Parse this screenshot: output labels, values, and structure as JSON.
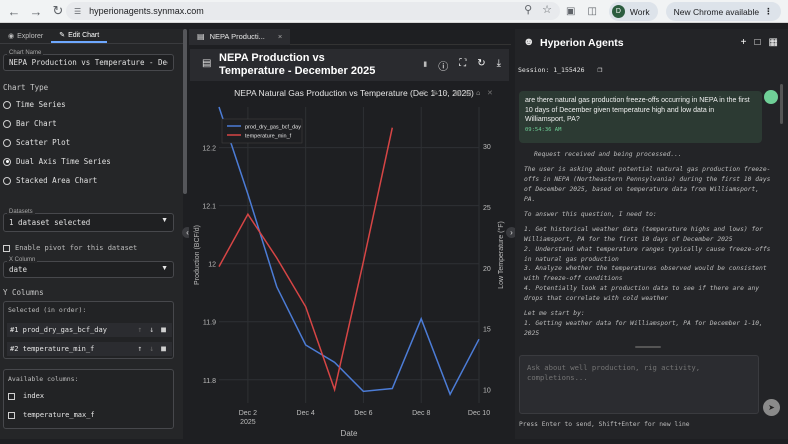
{
  "browser": {
    "url": "hyperionagents.synmax.com",
    "profile_initial": "D",
    "profile_label": "Work",
    "update_label": "New Chrome available"
  },
  "left_panel": {
    "tabs": [
      {
        "label": "Explorer",
        "icon": "compass-icon"
      },
      {
        "label": "Edit Chart",
        "icon": "pencil-icon"
      }
    ],
    "chart_name_label": "Chart Name",
    "chart_name_value": "NEPA Production vs Temperature - Decem",
    "chart_type_label": "Chart Type",
    "chart_types": [
      "Time Series",
      "Bar Chart",
      "Scatter Plot",
      "Dual Axis Time Series",
      "Stacked Area Chart"
    ],
    "selected_chart_type_index": 3,
    "datasets_label": "Datasets",
    "datasets_value": "1 dataset selected",
    "pivot_label": "Enable pivot for this dataset",
    "x_column_label": "X Column",
    "x_column_value": "date",
    "y_columns_label": "Y Columns",
    "selected_in_order_label": "Selected (in order):",
    "selected_columns": [
      {
        "index": "#1",
        "name": "prod_dry_gas_bcf_day"
      },
      {
        "index": "#2",
        "name": "temperature_min_f"
      }
    ],
    "available_columns_label": "Available columns:",
    "available_columns": [
      "index",
      "temperature_max_f"
    ]
  },
  "center": {
    "tab_label": "NEPA Producti...",
    "header_title": "NEPA Production vs Temperature - December 2025"
  },
  "chart_data": {
    "type": "line",
    "title": "NEPA Natural Gas Production vs Temperature (Dec 1-10, 2025)",
    "xlabel": "Date",
    "x": [
      "2025-12-01",
      "2025-12-02",
      "2025-12-03",
      "2025-12-04",
      "2025-12-05",
      "2025-12-06",
      "2025-12-07",
      "2025-12-08",
      "2025-12-09",
      "2025-12-10"
    ],
    "x_tick_labels": [
      "Dec 2",
      "2025",
      "Dec 4",
      "Dec 6",
      "Dec 8",
      "Dec 10"
    ],
    "y_left": {
      "label": "Production (BCF/d)",
      "ticks": [
        "11.8",
        "11.9",
        "12",
        "12.1",
        "12.2"
      ],
      "range": [
        11.76,
        12.27
      ]
    },
    "y_right": {
      "label": "Low Temperature (°F)",
      "ticks": [
        "10",
        "15",
        "20",
        "25",
        "30"
      ],
      "range": [
        8.9,
        33.2
      ]
    },
    "series": [
      {
        "name": "prod_dry_gas_bcf_day",
        "axis": "left",
        "color": "#4c7cd6",
        "values": [
          12.27,
          12.12,
          11.96,
          11.86,
          11.83,
          11.78,
          11.785,
          11.905,
          11.775,
          11.87
        ]
      },
      {
        "name": "temperature_min_f",
        "axis": "right",
        "color": "#d64545",
        "values": [
          20.1,
          24.4,
          20.8,
          16.8,
          10.0,
          20.5,
          31.5,
          null,
          null,
          null
        ]
      }
    ],
    "grid": true,
    "legend_position": "top-left"
  },
  "right_panel": {
    "title": "Hyperion Agents",
    "session": "Session: 1_155426",
    "user_message": "are there natural gas production freeze-offs occurring in NEPA in the first 10 days of December given temperature high and low data in Williamsport, PA?",
    "user_message_time": "09:54:36 AM",
    "assistant_paragraphs": [
      "Request received and being processed...",
      "The user is asking about potential natural gas production freeze-offs in NEPA (Northeastern Pennsylvania) during the first 10 days of December 2025, based on temperature data from Williamsport, PA.",
      "To answer this question, I need to:",
      "1. Get historical weather data (temperature highs and lows) for Williamsport, PA for the first 10 days of December 2025\n2. Understand what temperature ranges typically cause freeze-offs in natural gas production\n3. Analyze whether the temperatures observed would be consistent with freeze-off conditions\n4. Potentially look at production data to see if there are any drops that correlate with cold weather",
      "Let me start by:\n1. Getting weather data for Williamsport, PA for December 1-10, 2025"
    ],
    "input_placeholder": "Ask about well production, rig activity, completions...",
    "hint": "Press Enter to send, Shift+Enter for new line"
  },
  "colors": {
    "accent": "#6ea8fe",
    "user_bubble": "#2c3a33",
    "timestamp": "#6fcf97",
    "production_line": "#4c7cd6",
    "temperature_line": "#d64545"
  }
}
